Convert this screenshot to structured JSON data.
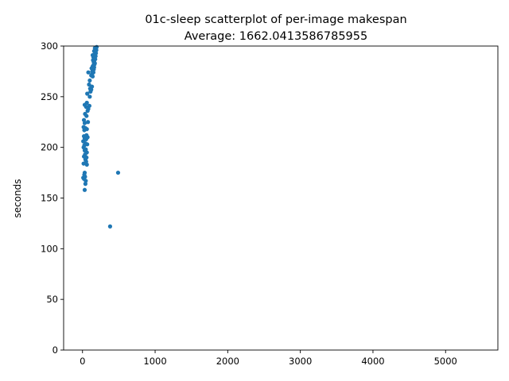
{
  "chart_data": {
    "type": "scatter",
    "title": "01c-sleep scatterplot of per-image makespan",
    "subtitle": "Average: 1662.0413586785955",
    "xlabel": "",
    "ylabel": "seconds",
    "xlim": [
      -260,
      5720
    ],
    "ylim": [
      0,
      300
    ],
    "xticks": [
      0,
      1000,
      2000,
      3000,
      4000,
      5000
    ],
    "yticks": [
      0,
      50,
      100,
      150,
      200,
      250,
      300
    ],
    "grid": false,
    "legend": "none",
    "marker_color": "#1f77b4",
    "points": [
      [
        490,
        175
      ],
      [
        380,
        122
      ],
      [
        30,
        158
      ],
      [
        40,
        164
      ],
      [
        45,
        167
      ],
      [
        20,
        169
      ],
      [
        10,
        170
      ],
      [
        35,
        171
      ],
      [
        25,
        173
      ],
      [
        30,
        175
      ],
      [
        60,
        183
      ],
      [
        15,
        184
      ],
      [
        50,
        186
      ],
      [
        40,
        188
      ],
      [
        55,
        190
      ],
      [
        20,
        191
      ],
      [
        35,
        193
      ],
      [
        60,
        195
      ],
      [
        30,
        197
      ],
      [
        45,
        198
      ],
      [
        15,
        200
      ],
      [
        25,
        202
      ],
      [
        65,
        203
      ],
      [
        40,
        204
      ],
      [
        10,
        206
      ],
      [
        50,
        208
      ],
      [
        30,
        209
      ],
      [
        70,
        210
      ],
      [
        20,
        211
      ],
      [
        55,
        212
      ],
      [
        25,
        217
      ],
      [
        60,
        218
      ],
      [
        40,
        219
      ],
      [
        15,
        220
      ],
      [
        30,
        224
      ],
      [
        75,
        225
      ],
      [
        20,
        227
      ],
      [
        55,
        231
      ],
      [
        35,
        233
      ],
      [
        70,
        236
      ],
      [
        80,
        238
      ],
      [
        50,
        240
      ],
      [
        95,
        241
      ],
      [
        30,
        242
      ],
      [
        60,
        244
      ],
      [
        100,
        250
      ],
      [
        65,
        253
      ],
      [
        110,
        255
      ],
      [
        120,
        257
      ],
      [
        105,
        258
      ],
      [
        130,
        260
      ],
      [
        90,
        262
      ],
      [
        100,
        266
      ],
      [
        140,
        270
      ],
      [
        120,
        271
      ],
      [
        130,
        272
      ],
      [
        150,
        274
      ],
      [
        80,
        274
      ],
      [
        135,
        275
      ],
      [
        145,
        276
      ],
      [
        155,
        277
      ],
      [
        125,
        278
      ],
      [
        160,
        279
      ],
      [
        140,
        280
      ],
      [
        150,
        281
      ],
      [
        165,
        282
      ],
      [
        170,
        283
      ],
      [
        155,
        284
      ],
      [
        160,
        285
      ],
      [
        145,
        286
      ],
      [
        175,
        287
      ],
      [
        165,
        288
      ],
      [
        150,
        289
      ],
      [
        180,
        290
      ],
      [
        140,
        291
      ],
      [
        170,
        292
      ],
      [
        185,
        293
      ],
      [
        175,
        294
      ],
      [
        160,
        295
      ],
      [
        190,
        296
      ],
      [
        180,
        297
      ],
      [
        170,
        298
      ],
      [
        195,
        299
      ]
    ]
  }
}
